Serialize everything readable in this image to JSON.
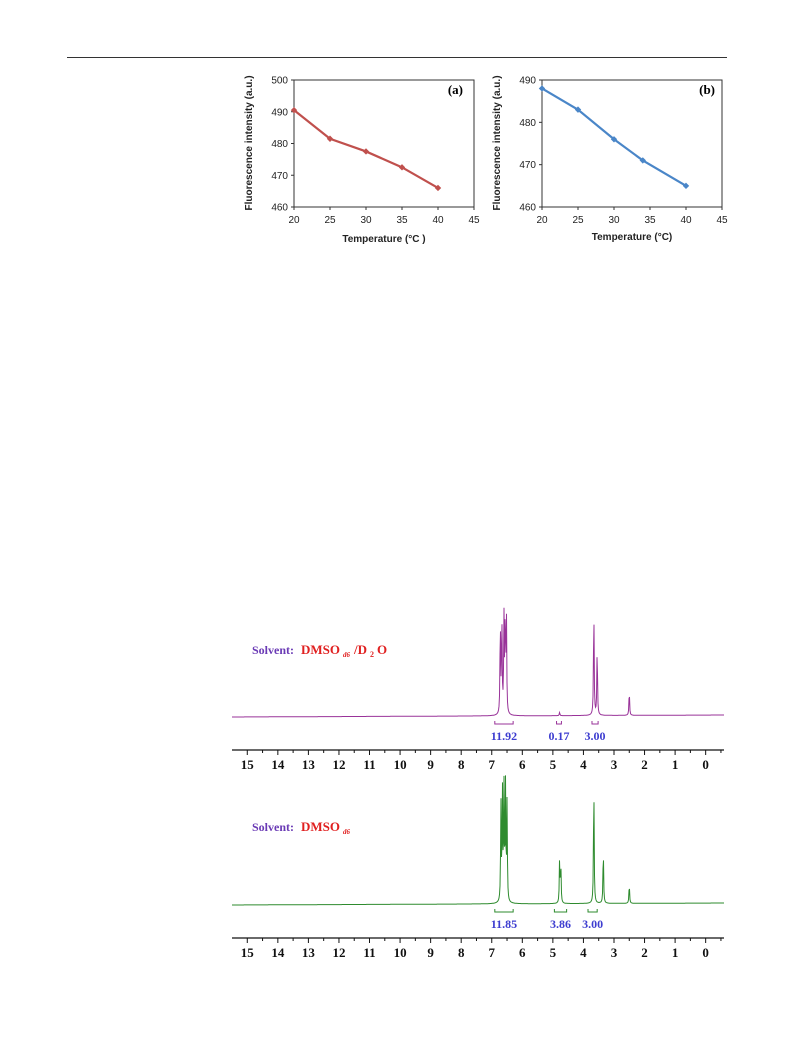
{
  "colors": {
    "series_a": "#c0504d",
    "series_b": "#4a86c8",
    "nmr_top": "#993399",
    "nmr_bottom": "#2e8b2e",
    "solvent_label": "#6a3ab5",
    "solvent_name": "#e02020",
    "integral_value": "#3d3dd0"
  },
  "chart_data": [
    {
      "type": "line",
      "panel_label": "(a)",
      "xlabel": "Temperature (°C )",
      "ylabel": "Fluorescence intensity (a.u.)",
      "xlim": [
        20,
        45
      ],
      "ylim": [
        460,
        500
      ],
      "xticks": [
        "20",
        "25",
        "30",
        "35",
        "40",
        "45"
      ],
      "yticks": [
        "460",
        "470",
        "480",
        "490",
        "500"
      ],
      "grid": false,
      "series": [
        {
          "x": [
            20,
            25,
            30,
            35,
            40
          ],
          "y": [
            490.5,
            481.5,
            477.5,
            472.5,
            466
          ]
        }
      ]
    },
    {
      "type": "line",
      "panel_label": "(b)",
      "xlabel": "Temperature (°C)",
      "ylabel": "Fluorescence intensity (a.u.)",
      "xlim": [
        20,
        45
      ],
      "ylim": [
        460,
        490
      ],
      "xticks": [
        "20",
        "25",
        "30",
        "35",
        "40",
        "45"
      ],
      "yticks": [
        "460",
        "470",
        "480",
        "490"
      ],
      "grid": false,
      "series": [
        {
          "x": [
            20,
            25,
            30,
            34,
            40
          ],
          "y": [
            488,
            483,
            476,
            471,
            465
          ]
        }
      ]
    },
    {
      "type": "line",
      "subtype": "nmr-spectrum",
      "xlim": [
        15.5,
        -0.6
      ],
      "xticks": [
        "15",
        "14",
        "13",
        "12",
        "11",
        "10",
        "9",
        "8",
        "7",
        "6",
        "5",
        "4",
        "3",
        "2",
        "1",
        "0"
      ],
      "spectra": [
        {
          "solvent_label": "Solvent:",
          "solvent_name": "DMSO",
          "solvent_sub": "d6",
          "solvent_suffix": "/D",
          "solvent_sub2": "2",
          "solvent_tail": "O",
          "peaks": [
            {
              "ppm": 6.72,
              "h": 0.86
            },
            {
              "ppm": 6.67,
              "h": 0.88
            },
            {
              "ppm": 6.6,
              "h": 0.84
            },
            {
              "ppm": 6.56,
              "h": 0.9
            },
            {
              "ppm": 6.52,
              "h": 0.86
            },
            {
              "ppm": 4.78,
              "h": 0.03
            },
            {
              "ppm": 3.66,
              "h": 1.0
            },
            {
              "ppm": 3.55,
              "h": 0.63
            },
            {
              "ppm": 2.5,
              "h": 0.23
            }
          ],
          "integrals": [
            {
              "ppm_from": 6.9,
              "ppm_to": 6.3,
              "value": "11.92"
            },
            {
              "ppm_from": 4.88,
              "ppm_to": 4.72,
              "value": "0.17"
            },
            {
              "ppm_from": 3.72,
              "ppm_to": 3.52,
              "value": "3.00"
            }
          ]
        },
        {
          "solvent_label": "Solvent:",
          "solvent_name": "DMSO",
          "solvent_sub": "d6",
          "peaks": [
            {
              "ppm": 6.7,
              "h": 0.8
            },
            {
              "ppm": 6.65,
              "h": 0.87
            },
            {
              "ppm": 6.6,
              "h": 0.9
            },
            {
              "ppm": 6.55,
              "h": 0.92
            },
            {
              "ppm": 6.5,
              "h": 0.78
            },
            {
              "ppm": 4.78,
              "h": 0.34
            },
            {
              "ppm": 4.74,
              "h": 0.32
            },
            {
              "ppm": 3.66,
              "h": 1.0
            },
            {
              "ppm": 3.35,
              "h": 0.45
            },
            {
              "ppm": 2.5,
              "h": 0.16
            }
          ],
          "integrals": [
            {
              "ppm_from": 6.9,
              "ppm_to": 6.3,
              "value": "11.85"
            },
            {
              "ppm_from": 4.95,
              "ppm_to": 4.55,
              "value": "3.86"
            },
            {
              "ppm_from": 3.85,
              "ppm_to": 3.55,
              "value": "3.00"
            }
          ]
        }
      ]
    }
  ]
}
